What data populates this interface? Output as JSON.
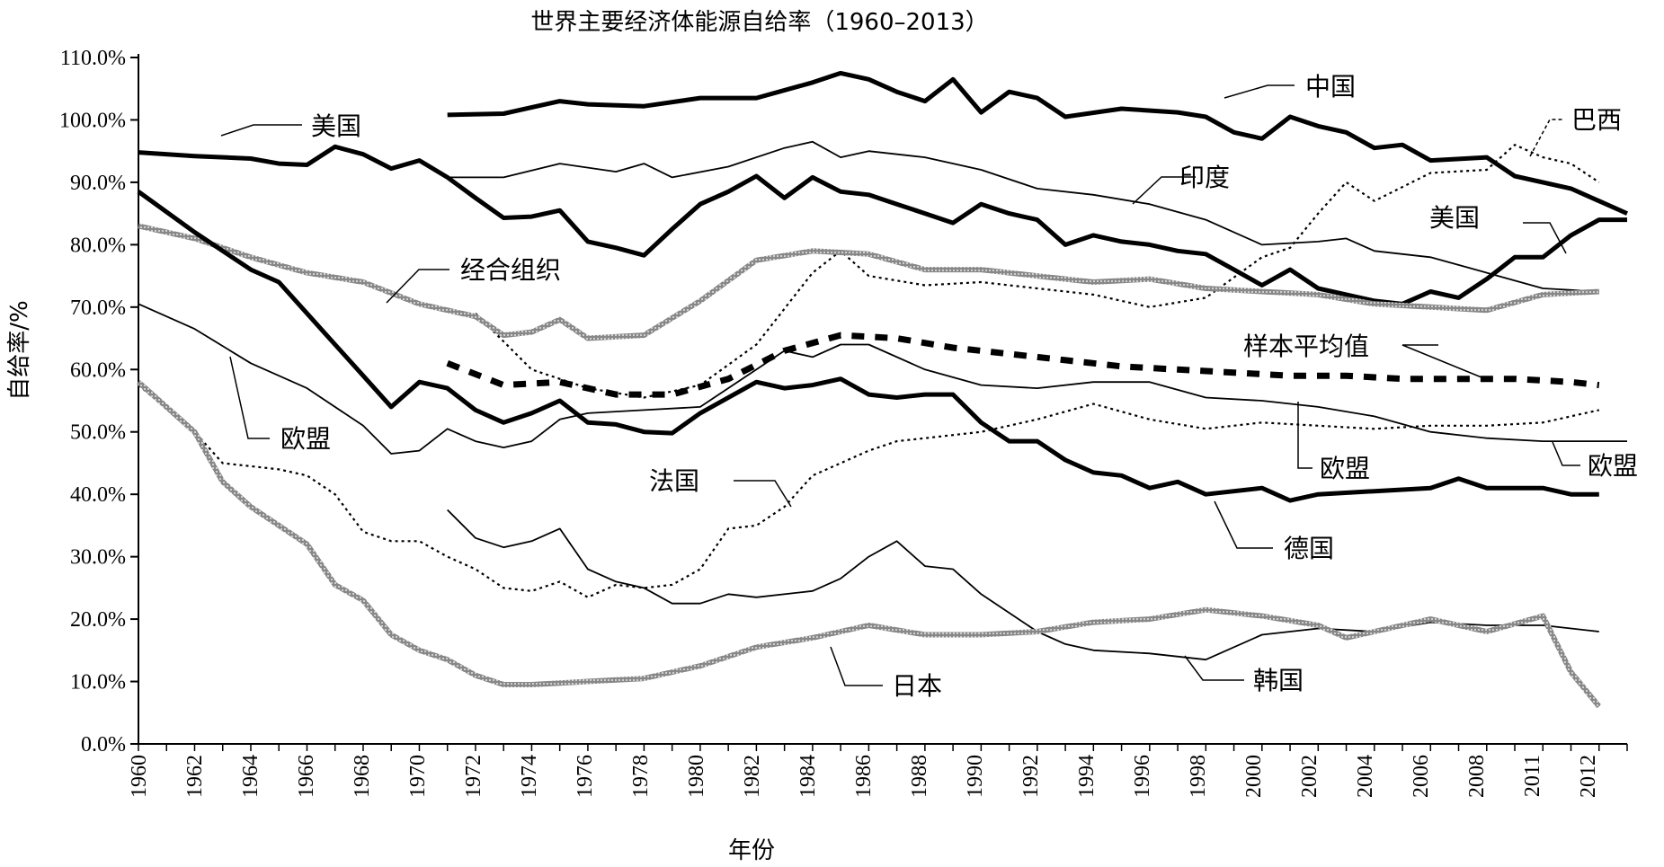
{
  "chart_data": {
    "type": "line",
    "title": "世界主要经济体能源自给率（1960–2013）",
    "xlabel": "年份",
    "ylabel": "自给率/%",
    "ylim": [
      0,
      110
    ],
    "yticks": [
      "0.0%",
      "10.0%",
      "20.0%",
      "30.0%",
      "40.0%",
      "50.0%",
      "60.0%",
      "70.0%",
      "80.0%",
      "90.0%",
      "100.0%",
      "110.0%"
    ],
    "xlim": [
      1960,
      2013
    ],
    "xticks": [
      "1960",
      "1962",
      "1964",
      "1966",
      "1968",
      "1970",
      "1972",
      "1974",
      "1976",
      "1978",
      "1980",
      "1982",
      "1984",
      "1986",
      "1988",
      "1990",
      "1992",
      "1994",
      "1996",
      "1998",
      "2000",
      "2002",
      "2004",
      "2006",
      "2008",
      "2011",
      "2012"
    ],
    "grid": false,
    "series": [
      {
        "name": "中国",
        "style": "thick",
        "x": [
          1971,
          1973,
          1975,
          1976,
          1978,
          1980,
          1982,
          1984,
          1985,
          1986,
          1987,
          1988,
          1989,
          1990,
          1991,
          1992,
          1993,
          1995,
          1997,
          1998,
          1999,
          2000,
          2001,
          2002,
          2003,
          2004,
          2005,
          2006,
          2008,
          2009,
          2011,
          2013
        ],
        "y": [
          100.8,
          101,
          103,
          102.5,
          102.2,
          103.5,
          103.5,
          106,
          107.5,
          106.5,
          104.5,
          103,
          106.5,
          101.2,
          104.5,
          103.5,
          100.5,
          101.8,
          101.2,
          100.5,
          98,
          97,
          100.5,
          99,
          98,
          95.5,
          96,
          93.5,
          94,
          91,
          89,
          85
        ]
      },
      {
        "name": "美国",
        "style": "thick",
        "x": [
          1960,
          1962,
          1964,
          1965,
          1966,
          1967,
          1968,
          1969,
          1970,
          1971,
          1972,
          1973,
          1974,
          1975,
          1976,
          1977,
          1978,
          1979,
          1980,
          1981,
          1982,
          1983,
          1984,
          1985,
          1986,
          1987,
          1988,
          1989,
          1990,
          1991,
          1992,
          1993,
          1994,
          1995,
          1996,
          1997,
          1998,
          1999,
          2000,
          2001,
          2002,
          2003,
          2004,
          2005,
          2006,
          2007,
          2008,
          2009,
          2010,
          2011,
          2012,
          2013
        ],
        "y": [
          94.8,
          94.2,
          93.8,
          93,
          92.8,
          95.7,
          94.5,
          92.2,
          93.5,
          90.8,
          87.5,
          84.3,
          84.5,
          85.5,
          80.5,
          79.5,
          78.3,
          82.5,
          86.5,
          88.5,
          91,
          87.5,
          90.8,
          88.5,
          88,
          86.5,
          85,
          83.5,
          86.5,
          85,
          84,
          80,
          81.5,
          80.5,
          80,
          79,
          78.5,
          76,
          73.5,
          76,
          73,
          72,
          71,
          70.5,
          72.5,
          71.5,
          74.5,
          78,
          78,
          81.5,
          84,
          84
        ]
      },
      {
        "name": "印度",
        "style": "thin",
        "x": [
          1971,
          1973,
          1975,
          1977,
          1978,
          1979,
          1981,
          1983,
          1984,
          1985,
          1986,
          1988,
          1990,
          1992,
          1994,
          1996,
          1998,
          2000,
          2002,
          2003,
          2004,
          2006,
          2008,
          2010,
          2012
        ],
        "y": [
          90.8,
          90.8,
          93,
          91.7,
          93,
          90.8,
          92.5,
          95.5,
          96.5,
          94,
          95,
          94,
          92,
          89,
          88,
          86.5,
          84,
          80,
          80.5,
          81,
          79,
          78,
          75.5,
          73,
          72.5
        ]
      },
      {
        "name": "巴西",
        "style": "dotted",
        "x": [
          1972,
          1974,
          1976,
          1978,
          1980,
          1982,
          1984,
          1985,
          1986,
          1988,
          1990,
          1992,
          1994,
          1996,
          1998,
          2000,
          2001,
          2002,
          2003,
          2004,
          2006,
          2008,
          2009,
          2010,
          2011,
          2012
        ],
        "y": [
          69,
          60,
          57,
          55.5,
          57.5,
          64,
          75.5,
          79,
          75,
          73.5,
          74,
          73,
          72,
          70,
          71.5,
          78,
          79.5,
          85,
          90,
          87,
          91.5,
          92,
          96,
          94,
          93,
          90
        ]
      },
      {
        "name": "经合组织",
        "style": "gray-thick",
        "x": [
          1960,
          1962,
          1964,
          1966,
          1968,
          1970,
          1972,
          1973,
          1974,
          1975,
          1976,
          1978,
          1980,
          1982,
          1984,
          1986,
          1988,
          1990,
          1992,
          1994,
          1996,
          1998,
          2000,
          2002,
          2004,
          2006,
          2008,
          2010,
          2012
        ],
        "y": [
          83,
          81,
          78,
          75.5,
          74,
          70.5,
          68.5,
          65.5,
          66,
          68,
          65,
          65.5,
          71,
          77.5,
          79,
          78.5,
          76,
          76,
          75,
          74,
          74.5,
          73,
          72.5,
          72,
          70.5,
          70,
          69.5,
          72,
          72.5
        ]
      },
      {
        "name": "欧盟",
        "style": "thin",
        "x": [
          1960,
          1962,
          1964,
          1966,
          1968,
          1969,
          1970,
          1971,
          1972,
          1973,
          1974,
          1975,
          1976,
          1978,
          1980,
          1982,
          1983,
          1984,
          1985,
          1986,
          1988,
          1990,
          1992,
          1994,
          1996,
          1998,
          2000,
          2002,
          2004,
          2006,
          2008,
          2010,
          2013
        ],
        "y": [
          70.5,
          66.5,
          61,
          57,
          51,
          46.5,
          47,
          50.5,
          48.5,
          47.5,
          48.5,
          52,
          53,
          53.5,
          54,
          60,
          63,
          62,
          64,
          64,
          60,
          57.5,
          57,
          58,
          58,
          55.5,
          55,
          54,
          52.5,
          50,
          49,
          48.5,
          48.5
        ]
      },
      {
        "name": "德国",
        "style": "thick",
        "x": [
          1960,
          1962,
          1964,
          1965,
          1966,
          1967,
          1968,
          1969,
          1970,
          1971,
          1972,
          1973,
          1974,
          1975,
          1976,
          1977,
          1978,
          1979,
          1980,
          1982,
          1983,
          1984,
          1985,
          1986,
          1987,
          1988,
          1989,
          1990,
          1991,
          1992,
          1993,
          1994,
          1995,
          1996,
          1997,
          1998,
          2000,
          2001,
          2002,
          2004,
          2006,
          2007,
          2008,
          2010,
          2011,
          2012
        ],
        "y": [
          88.5,
          82,
          76,
          74,
          69,
          64,
          59,
          54,
          58,
          57,
          53.5,
          51.5,
          53,
          55,
          51.5,
          51.2,
          50,
          49.8,
          53,
          58,
          57,
          57.5,
          58.5,
          56,
          55.5,
          56,
          56,
          51.5,
          48.5,
          48.5,
          45.5,
          43.5,
          43,
          41,
          42,
          40,
          41,
          39,
          40,
          40.5,
          41,
          42.5,
          41,
          41,
          40,
          40
        ]
      },
      {
        "name": "样本平均值",
        "style": "dashed-thick",
        "x": [
          1971,
          1973,
          1975,
          1977,
          1979,
          1981,
          1983,
          1985,
          1987,
          1989,
          1991,
          1993,
          1995,
          1997,
          1999,
          2001,
          2003,
          2005,
          2007,
          2009,
          2011,
          2012
        ],
        "y": [
          61,
          57.5,
          58,
          56,
          56,
          58.5,
          63,
          65.5,
          65,
          63.5,
          62.5,
          61.5,
          60.5,
          60,
          59.5,
          59,
          59,
          58.5,
          58.5,
          58.5,
          58,
          57.5
        ]
      },
      {
        "name": "法国",
        "style": "dotted",
        "x": [
          1960,
          1962,
          1963,
          1964,
          1965,
          1966,
          1967,
          1968,
          1969,
          1970,
          1971,
          1972,
          1973,
          1974,
          1975,
          1976,
          1977,
          1978,
          1979,
          1980,
          1981,
          1982,
          1983,
          1984,
          1985,
          1986,
          1987,
          1988,
          1990,
          1992,
          1994,
          1996,
          1998,
          2000,
          2002,
          2004,
          2006,
          2008,
          2010,
          2012
        ],
        "y": [
          57.5,
          50,
          45,
          44.5,
          44,
          43,
          40,
          34,
          32.5,
          32.5,
          30,
          28,
          25,
          24.5,
          26,
          23.5,
          25.5,
          25,
          25.5,
          28,
          34.5,
          35,
          38,
          43,
          45,
          47,
          48.5,
          49,
          50,
          52,
          54.5,
          52,
          50.5,
          51.5,
          51,
          50.5,
          51,
          51,
          51.5,
          53.5
        ]
      },
      {
        "name": "韩国",
        "style": "thin",
        "x": [
          1971,
          1972,
          1973,
          1974,
          1975,
          1976,
          1977,
          1978,
          1979,
          1980,
          1981,
          1982,
          1984,
          1985,
          1986,
          1987,
          1988,
          1989,
          1990,
          1991,
          1992,
          1993,
          1994,
          1996,
          1998,
          2000,
          2002,
          2004,
          2006,
          2008,
          2010,
          2012
        ],
        "y": [
          37.5,
          33,
          31.5,
          32.5,
          34.5,
          28,
          26,
          25,
          22.5,
          22.5,
          24,
          23.5,
          24.5,
          26.5,
          30,
          32.5,
          28.5,
          28,
          24,
          21,
          18,
          16,
          15,
          14.5,
          13.5,
          17.5,
          18.5,
          18,
          19.5,
          19,
          19,
          18
        ]
      },
      {
        "name": "日本",
        "style": "gray-thick",
        "x": [
          1960,
          1962,
          1963,
          1964,
          1965,
          1966,
          1967,
          1968,
          1969,
          1970,
          1971,
          1972,
          1973,
          1974,
          1976,
          1978,
          1980,
          1982,
          1984,
          1986,
          1988,
          1990,
          1992,
          1994,
          1996,
          1998,
          2000,
          2002,
          2003,
          2004,
          2006,
          2008,
          2010,
          2011,
          2012
        ],
        "y": [
          58,
          50,
          42,
          38,
          35,
          32,
          25.5,
          23,
          17.5,
          15,
          13.5,
          11,
          9.5,
          9.5,
          10,
          10.5,
          12.5,
          15.5,
          17,
          19,
          17.5,
          17.5,
          18,
          19.5,
          20,
          21.5,
          20.5,
          19,
          17,
          18,
          20,
          18,
          20.5,
          11.5,
          6
        ]
      }
    ],
    "annotations": [
      "美国",
      "中国",
      "巴西",
      "印度",
      "美国",
      "经合组织",
      "样本平均值",
      "欧盟",
      "欧盟",
      "欧盟",
      "法国",
      "德国",
      "日本",
      "韩国"
    ]
  }
}
